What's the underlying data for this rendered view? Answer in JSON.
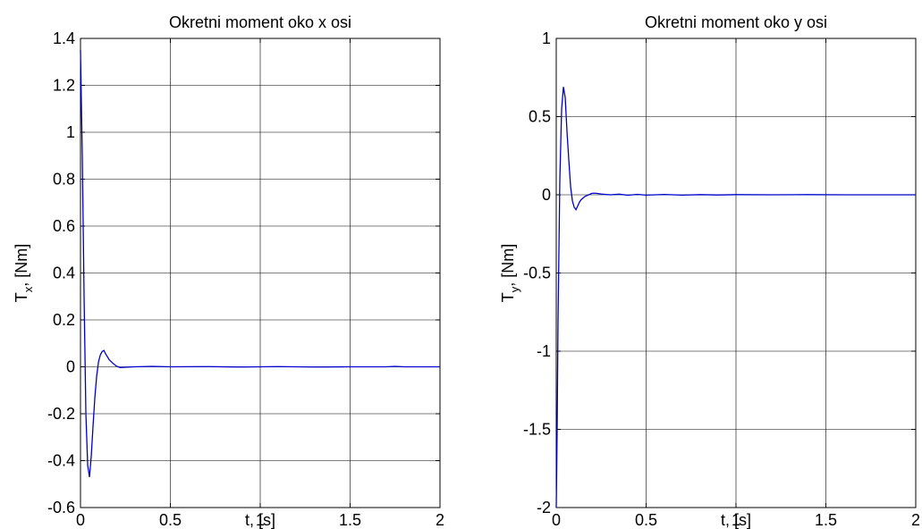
{
  "chart_data": [
    {
      "type": "line",
      "title": "Okretni moment oko x osi",
      "xlabel": "t, [s]",
      "ylabel_main": "T",
      "ylabel_sub": "x",
      "ylabel_rest": ", [Nm]",
      "xlim": [
        0,
        2
      ],
      "ylim": [
        -0.6,
        1.4
      ],
      "xticks": [
        0,
        0.5,
        1,
        1.5,
        2
      ],
      "xtick_labels": [
        "0",
        "0.5",
        "1",
        "1.5",
        "2"
      ],
      "yticks": [
        -0.6,
        -0.4,
        -0.2,
        0,
        0.2,
        0.4,
        0.6,
        0.8,
        1,
        1.2,
        1.4
      ],
      "ytick_labels": [
        "-0.6",
        "-0.4",
        "-0.2",
        "0",
        "0.2",
        "0.4",
        "0.6",
        "0.8",
        "1",
        "1.2",
        "1.4"
      ],
      "grid": true,
      "color": "#0000cc",
      "series": [
        {
          "x": [
            0,
            0.01,
            0.02,
            0.03,
            0.04,
            0.05,
            0.06,
            0.07,
            0.08,
            0.09,
            0.1,
            0.11,
            0.12,
            0.13,
            0.14,
            0.16,
            0.18,
            0.2,
            0.22,
            0.25,
            0.3,
            0.4,
            0.5,
            0.7,
            0.9,
            1.1,
            1.3,
            1.5,
            1.7,
            1.75,
            1.8,
            2.0
          ],
          "y": [
            1.35,
            0.9,
            0.3,
            -0.2,
            -0.42,
            -0.47,
            -0.38,
            -0.25,
            -0.13,
            -0.04,
            0.02,
            0.05,
            0.065,
            0.07,
            0.055,
            0.03,
            0.015,
            0.003,
            -0.003,
            -0.002,
            0.0,
            0.002,
            0.0,
            0.001,
            -0.001,
            0.001,
            -0.001,
            0.0,
            0.0,
            0.002,
            0.0,
            0.0
          ]
        }
      ]
    },
    {
      "type": "line",
      "title": "Okretni moment oko y osi",
      "xlabel": "t, [s]",
      "ylabel_main": "T",
      "ylabel_sub": "y",
      "ylabel_rest": ", [Nm]",
      "xlim": [
        0,
        2
      ],
      "ylim": [
        -2,
        1
      ],
      "xticks": [
        0,
        0.5,
        1,
        1.5,
        2
      ],
      "xtick_labels": [
        "0",
        "0.5",
        "1",
        "1.5",
        "2"
      ],
      "yticks": [
        -2,
        -1.5,
        -1,
        -0.5,
        0,
        0.5,
        1
      ],
      "ytick_labels": [
        "-2",
        "-1.5",
        "-1",
        "-0.5",
        "0",
        "0.5",
        "1"
      ],
      "grid": true,
      "color": "#0000cc",
      "series": [
        {
          "x": [
            0,
            0.005,
            0.01,
            0.02,
            0.03,
            0.04,
            0.05,
            0.06,
            0.07,
            0.08,
            0.09,
            0.1,
            0.11,
            0.12,
            0.13,
            0.14,
            0.16,
            0.18,
            0.2,
            0.22,
            0.25,
            0.3,
            0.35,
            0.4,
            0.45,
            0.5,
            0.6,
            0.7,
            0.8,
            0.9,
            1.0,
            1.2,
            1.4,
            1.6,
            1.8,
            2.0
          ],
          "y": [
            -2.0,
            -1.5,
            -0.8,
            0.1,
            0.55,
            0.69,
            0.62,
            0.4,
            0.22,
            0.05,
            -0.04,
            -0.08,
            -0.095,
            -0.07,
            -0.045,
            -0.03,
            -0.01,
            0.0,
            0.01,
            0.01,
            0.005,
            0.0,
            0.004,
            -0.003,
            0.003,
            -0.002,
            0.002,
            -0.002,
            0.001,
            -0.001,
            0.001,
            0.0,
            0.001,
            0.0,
            0.0,
            0.0
          ]
        }
      ]
    }
  ]
}
